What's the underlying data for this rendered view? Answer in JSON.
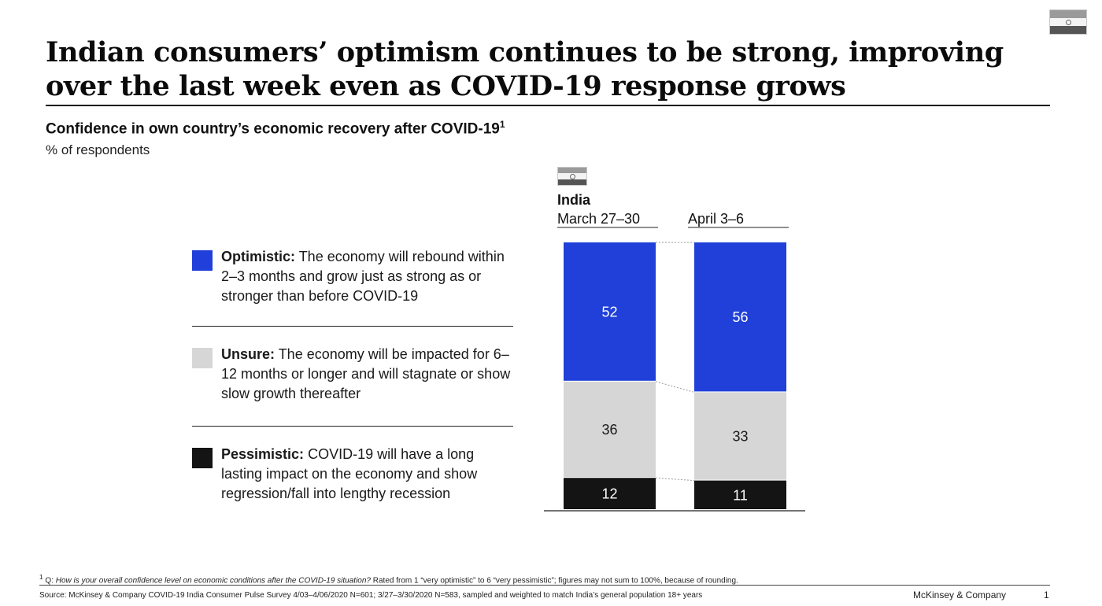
{
  "title": "Indian consumers’ optimism continues to be strong, improving over the last week even as COVID-19 response grows",
  "subtitle": "Confidence in own country’s economic recovery after COVID-19",
  "subtitle_footnote_marker": "1",
  "unit_label": "% of respondents",
  "legend": [
    {
      "label": "Optimistic:",
      "description": " The economy will rebound within 2–3 months and grow just as strong as or stronger than before COVID-19",
      "color": "#2040d9"
    },
    {
      "label": "Unsure:",
      "description": " The economy will be impacted for 6– 12 months or longer and will stagnate or show slow growth thereafter",
      "color": "#d6d6d6"
    },
    {
      "label": "Pessimistic:",
      "description": " COVID-19 will have a long lasting impact on the economy and show regression/fall into lengthy recession",
      "color": "#141414"
    }
  ],
  "chart_data": {
    "type": "bar",
    "stacked": true,
    "country_label": "India",
    "categories": [
      "March 27–30",
      "April 3–6"
    ],
    "series": [
      {
        "name": "Pessimistic",
        "values": [
          12,
          11
        ],
        "color": "#141414",
        "label_color": "#ffffff"
      },
      {
        "name": "Unsure",
        "values": [
          36,
          33
        ],
        "color": "#d6d6d6",
        "label_color": "#1a1a1a"
      },
      {
        "name": "Optimistic",
        "values": [
          52,
          56
        ],
        "color": "#2040d9",
        "label_color": "#ffffff"
      }
    ],
    "ylim": [
      0,
      100
    ]
  },
  "footnote": {
    "marker": "1",
    "prefix": " Q: ",
    "question": "How is your overall confidence level on economic conditions after the COVID-19 situation?",
    "rest": " Rated from 1 “very optimistic” to 6 “very pessimistic”; figures may not sum to 100%, because of rounding."
  },
  "source": "Source: McKinsey & Company COVID-19 India Consumer Pulse Survey 4/03–4/06/2020 N=601; 3/27–3/30/2020 N=583, sampled and weighted to match India’s general population 18+ years",
  "brand": "McKinsey & Company",
  "page_number": "1"
}
